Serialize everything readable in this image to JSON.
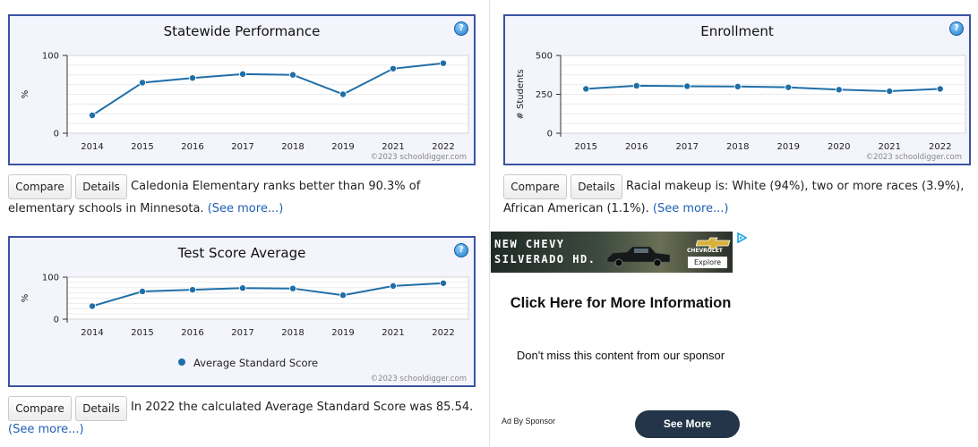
{
  "colors": {
    "accent": "#1f6ea8",
    "border": "#3a54a3",
    "panel_bg": "#f3f4fc"
  },
  "icons": {
    "help": "question-circle-icon",
    "ad_choices": "ad-choices-triangle-icon"
  },
  "credit": "©2023 schooldigger.com",
  "buttons": {
    "compare": "Compare",
    "details": "Details"
  },
  "see_more": "(See more...)",
  "statewide": {
    "description": "Caledonia Elementary ranks better than 90.3% of elementary schools in Minnesota.",
    "chart_data": {
      "type": "line",
      "title": "Statewide Performance",
      "xlabel": "",
      "ylabel": "%",
      "categories": [
        "2014",
        "2015",
        "2016",
        "2017",
        "2018",
        "2019",
        "2021",
        "2022"
      ],
      "values": [
        23,
        65,
        71,
        76,
        75,
        50,
        83,
        90
      ],
      "ylim": [
        0,
        100
      ],
      "yticks": [
        0,
        100
      ],
      "grid": true
    }
  },
  "enrollment": {
    "description": "Racial makeup is: White (94%), two or more races (3.9%), African American (1.1%).",
    "chart_data": {
      "type": "line",
      "title": "Enrollment",
      "xlabel": "",
      "ylabel": "# Students",
      "categories": [
        "2015",
        "2016",
        "2017",
        "2018",
        "2019",
        "2020",
        "2021",
        "2022"
      ],
      "values": [
        285,
        305,
        302,
        300,
        295,
        280,
        270,
        285
      ],
      "ylim": [
        0,
        500
      ],
      "yticks": [
        0,
        250,
        500
      ],
      "grid": true
    }
  },
  "testscore": {
    "description": "In 2022 the calculated Average Standard Score was 85.54.",
    "legend": "Average Standard Score",
    "chart_data": {
      "type": "line",
      "title": "Test Score Average",
      "xlabel": "",
      "ylabel": "%",
      "categories": [
        "2014",
        "2015",
        "2016",
        "2017",
        "2018",
        "2019",
        "2021",
        "2022"
      ],
      "series": [
        {
          "name": "Average Standard Score",
          "values": [
            31,
            66,
            70,
            74,
            73,
            57,
            79,
            85.54
          ]
        }
      ],
      "ylim": [
        0,
        100
      ],
      "yticks": [
        0,
        100
      ],
      "grid": true
    }
  },
  "ad": {
    "banner_line1": "NEW CHEVY",
    "banner_line2": "SILVERADO HD.",
    "brand": "CHEVROLET",
    "explore": "Explore",
    "headline": "Click Here for More Information",
    "subtext": "Don't miss this content from our sponsor",
    "sponsor": "Ad By Sponsor",
    "cta": "See More"
  }
}
